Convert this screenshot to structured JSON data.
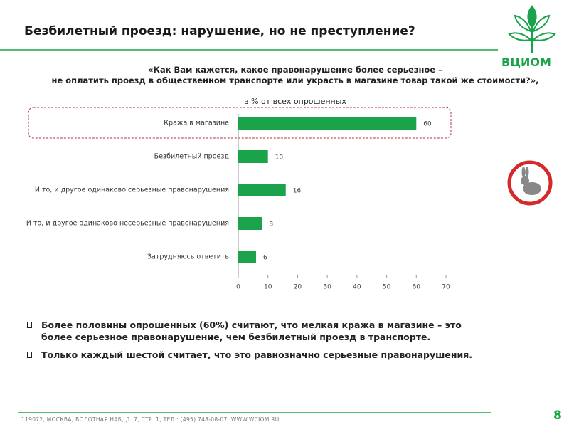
{
  "slide": {
    "title": "Безбилетный проезд: нарушение, но не преступление?",
    "logo": "ВЦИОМ",
    "bullets": [
      "Более половины опрошенных (60%) считают, что мелкая кража в магазине – это более серьезное правонарушение, чем безбилетный проезд в транспорте.",
      "Только каждый шестой считает, что это равнозначно серьезные правонарушения."
    ],
    "footer": "119072, МОСКВА, БОЛОТНАЯ НАБ, Д. 7, СТР. 1, ТЕЛ.: (495) 748-08-07, WWW.WCIOM.RU",
    "page_number": "8"
  },
  "chart_data": {
    "type": "bar",
    "orientation": "horizontal",
    "title": "«Как Вам кажется, какое правонарушение более серьезное –\nне оплатить проезд в общественном транспорте или украсть в магазине товар такой же стоимости?»,",
    "subtitle": "в % от всех опрошенных",
    "categories": [
      "Кража в магазине",
      "Безбилетный проезд",
      "И то, и другое одинаково серьезные правонарушения",
      "И то, и другое одинаково несерьезные правонарушения",
      "Затрудняюсь ответить"
    ],
    "values": [
      60,
      10,
      16,
      8,
      6
    ],
    "color": "#1aa34a",
    "xlim": [
      0,
      70
    ],
    "xticks": [
      0,
      10,
      20,
      30,
      40,
      50,
      60,
      70
    ],
    "grid": false
  }
}
